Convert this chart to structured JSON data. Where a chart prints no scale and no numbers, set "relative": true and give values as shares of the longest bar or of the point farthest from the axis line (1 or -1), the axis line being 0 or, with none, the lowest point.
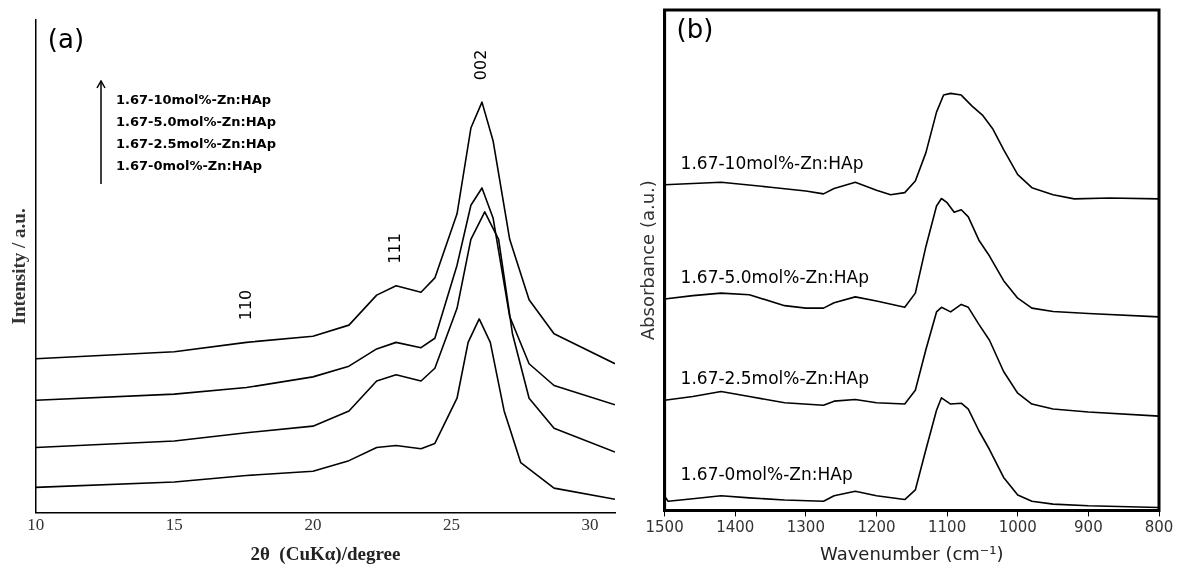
{
  "chart_data": [
    {
      "type": "line",
      "title": "(a)",
      "xlabel": "2θ  (CuKα)/degree",
      "ylabel": "Intensity / a.u.",
      "relative": true,
      "xlim": [
        10,
        30.9
      ],
      "xticks": [
        10,
        15,
        20,
        25,
        30
      ],
      "grid": false,
      "series": [
        {
          "color": "#000000",
          "x": [
            10,
            15,
            17.6,
            20,
            21.3,
            22.3,
            23,
            23.9,
            24.4,
            25.2,
            25.7,
            26.1,
            26.5,
            27.1,
            27.8,
            28.7,
            30.9
          ],
          "values": [
            0.375,
            0.392,
            0.415,
            0.43,
            0.457,
            0.53,
            0.553,
            0.537,
            0.572,
            0.728,
            0.937,
            1.0,
            0.906,
            0.666,
            0.519,
            0.436,
            0.363
          ]
        },
        {
          "color": "#000000",
          "x": [
            10,
            15,
            17.6,
            20,
            21.3,
            22.3,
            23,
            23.9,
            24.4,
            25.2,
            25.7,
            26.1,
            26.5,
            27.1,
            27.8,
            28.7,
            30.9
          ],
          "values": [
            0.274,
            0.289,
            0.305,
            0.331,
            0.357,
            0.399,
            0.415,
            0.402,
            0.425,
            0.603,
            0.749,
            0.791,
            0.718,
            0.478,
            0.363,
            0.31,
            0.263
          ]
        },
        {
          "color": "#000000",
          "x": [
            10,
            15,
            17.6,
            20,
            21.3,
            22.3,
            23,
            23.9,
            24.4,
            25.2,
            25.7,
            26.2,
            26.7,
            27.2,
            27.8,
            28.7,
            30.9
          ],
          "values": [
            0.159,
            0.175,
            0.195,
            0.211,
            0.248,
            0.321,
            0.336,
            0.321,
            0.352,
            0.498,
            0.666,
            0.733,
            0.666,
            0.436,
            0.279,
            0.206,
            0.148
          ]
        },
        {
          "color": "#000000",
          "x": [
            10,
            15,
            17.6,
            20,
            21.3,
            22.3,
            23,
            23.9,
            24.4,
            25.2,
            25.6,
            26.0,
            26.4,
            26.9,
            27.5,
            28.7,
            30.9
          ],
          "values": [
            0.062,
            0.075,
            0.091,
            0.101,
            0.127,
            0.159,
            0.164,
            0.156,
            0.169,
            0.279,
            0.415,
            0.472,
            0.415,
            0.248,
            0.122,
            0.06,
            0.033
          ]
        }
      ],
      "annotations": [
        "1.67-10mol%-Zn:HAp",
        "1.67-5.0mol%-Zn:HAp",
        "1.67-2.5mol%-Zn:HAp",
        "1.67-0mol%-Zn:HAp",
        {
          "text": "110",
          "x": 17.6,
          "y": 0.415
        },
        {
          "text": "111",
          "x": 23,
          "y": 0.553
        },
        {
          "text": "002",
          "x": 26.1,
          "y": 1.0
        }
      ]
    },
    {
      "type": "line",
      "title": "(b)",
      "xlabel": "Wavenumber (cm⁻¹)",
      "ylabel": "Absorbance (a.u.)",
      "relative": true,
      "xlim": [
        1500,
        800
      ],
      "xticks": [
        1500,
        1400,
        1300,
        1200,
        1100,
        1000,
        900,
        800
      ],
      "grid": false,
      "series": [
        {
          "name": "1.67-10mol%-Zn:HAp",
          "color": "#000000",
          "x": [
            1500,
            1420,
            1350,
            1300,
            1275,
            1260,
            1230,
            1200,
            1180,
            1160,
            1145,
            1130,
            1115,
            1105,
            1095,
            1080,
            1065,
            1050,
            1035,
            1020,
            1000,
            980,
            950,
            920,
            870,
            800
          ],
          "values": [
            0.781,
            0.787,
            0.775,
            0.766,
            0.759,
            0.772,
            0.787,
            0.768,
            0.757,
            0.762,
            0.79,
            0.858,
            0.955,
            0.996,
            1.0,
            0.996,
            0.97,
            0.948,
            0.914,
            0.865,
            0.805,
            0.774,
            0.757,
            0.747,
            0.749,
            0.747
          ]
        },
        {
          "name": "1.67-5.0mol%-Zn:HAp",
          "color": "#000000",
          "x": [
            1500,
            1460,
            1420,
            1380,
            1330,
            1300,
            1275,
            1260,
            1230,
            1200,
            1160,
            1145,
            1130,
            1115,
            1108,
            1100,
            1090,
            1080,
            1070,
            1055,
            1040,
            1020,
            1000,
            980,
            950,
            900,
            800
          ],
          "values": [
            0.507,
            0.515,
            0.521,
            0.517,
            0.491,
            0.485,
            0.485,
            0.498,
            0.512,
            0.502,
            0.487,
            0.521,
            0.633,
            0.73,
            0.748,
            0.738,
            0.715,
            0.721,
            0.704,
            0.648,
            0.61,
            0.551,
            0.509,
            0.485,
            0.477,
            0.472,
            0.464
          ]
        },
        {
          "name": "1.67-2.5mol%-Zn:HAp",
          "color": "#000000",
          "x": [
            1500,
            1460,
            1420,
            1380,
            1330,
            1275,
            1260,
            1230,
            1200,
            1160,
            1145,
            1130,
            1115,
            1108,
            1095,
            1080,
            1070,
            1055,
            1040,
            1020,
            1000,
            980,
            950,
            900,
            800
          ],
          "values": [
            0.264,
            0.273,
            0.285,
            0.273,
            0.258,
            0.252,
            0.262,
            0.266,
            0.258,
            0.255,
            0.288,
            0.386,
            0.476,
            0.487,
            0.476,
            0.494,
            0.487,
            0.446,
            0.408,
            0.333,
            0.281,
            0.255,
            0.243,
            0.236,
            0.226
          ]
        },
        {
          "name": "1.67-0mol%-Zn:HAp",
          "color": "#000000",
          "x": [
            1500,
            1495,
            1460,
            1420,
            1380,
            1330,
            1275,
            1260,
            1230,
            1200,
            1160,
            1145,
            1130,
            1115,
            1108,
            1095,
            1080,
            1070,
            1055,
            1040,
            1020,
            1000,
            980,
            950,
            900,
            800
          ],
          "values": [
            0.034,
            0.022,
            0.028,
            0.035,
            0.03,
            0.025,
            0.022,
            0.035,
            0.046,
            0.035,
            0.026,
            0.049,
            0.146,
            0.24,
            0.27,
            0.255,
            0.257,
            0.243,
            0.191,
            0.146,
            0.079,
            0.037,
            0.022,
            0.015,
            0.011,
            0.007
          ]
        }
      ]
    }
  ]
}
